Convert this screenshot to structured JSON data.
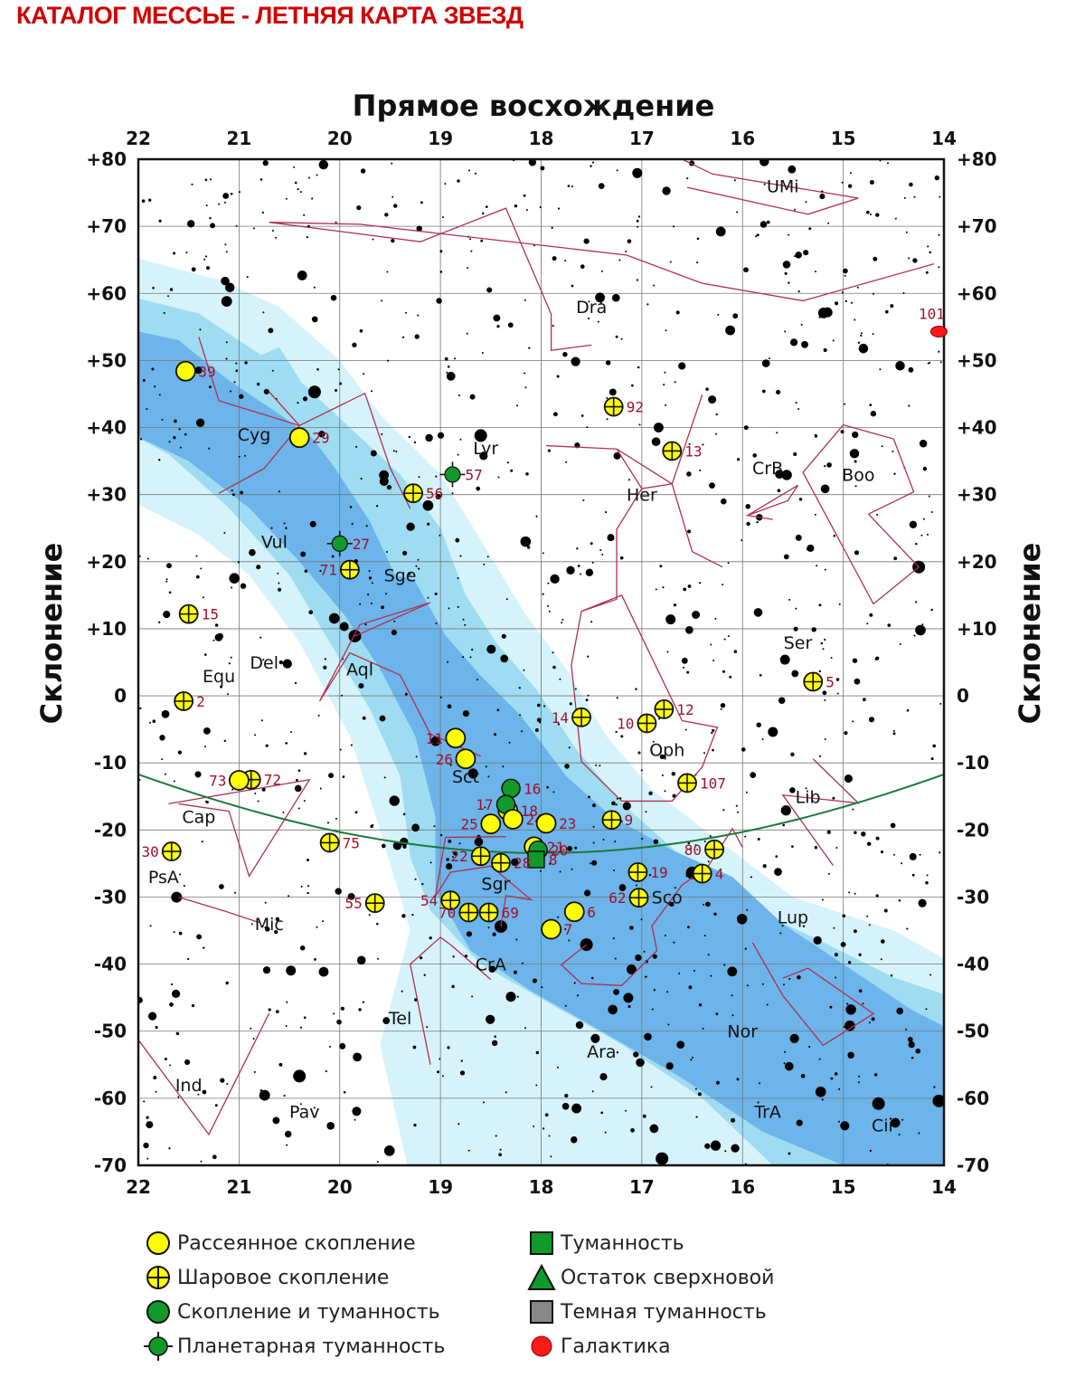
{
  "title": "КАТАЛОГ МЕССЬЕ - ЛЕТНЯЯ КАРТА ЗВЕЗД",
  "axes": {
    "x_title": "Прямое восхождение",
    "y_title": "Склонение",
    "ra_ticks": [
      "22",
      "21",
      "20",
      "19",
      "18",
      "17",
      "16",
      "15",
      "14"
    ],
    "dec_ticks": [
      "+80",
      "+70",
      "+60",
      "+50",
      "+40",
      "+30",
      "+20",
      "+10",
      "0",
      "-10",
      "-20",
      "-30",
      "-40",
      "-50",
      "-60",
      "-70"
    ]
  },
  "colors": {
    "open_cluster": "#ffff00",
    "globular_cluster": "#ffff00",
    "cluster_nebula": "#119a2a",
    "planetary_nebula": "#119a2a",
    "nebula": "#119a2a",
    "galaxy": "#ff1a1a",
    "milky_way_outer": "#d6f3fb",
    "milky_way_mid": "#9fdcf2",
    "milky_way_inner": "#6cb4ea",
    "constellation_lines": "#b03050",
    "ecliptic": "#1a7a3a",
    "number_labels": "#a0102a"
  },
  "constellations": [
    {
      "name": "UMi",
      "ra": 15.6,
      "dec": 76
    },
    {
      "name": "Dra",
      "ra": 17.5,
      "dec": 58
    },
    {
      "name": "Cyg",
      "ra": 20.85,
      "dec": 39
    },
    {
      "name": "Lyr",
      "ra": 18.55,
      "dec": 37
    },
    {
      "name": "CrB",
      "ra": 15.75,
      "dec": 34
    },
    {
      "name": "Boo",
      "ra": 14.85,
      "dec": 33
    },
    {
      "name": "Her",
      "ra": 17.0,
      "dec": 30
    },
    {
      "name": "Vul",
      "ra": 20.65,
      "dec": 23
    },
    {
      "name": "Sge",
      "ra": 19.4,
      "dec": 18
    },
    {
      "name": "Del",
      "ra": 20.75,
      "dec": 5
    },
    {
      "name": "Ser",
      "ra": 15.45,
      "dec": 8
    },
    {
      "name": "Aql",
      "ra": 19.8,
      "dec": 4
    },
    {
      "name": "Equ",
      "ra": 21.2,
      "dec": 3
    },
    {
      "name": "Oph",
      "ra": 16.75,
      "dec": -8
    },
    {
      "name": "Sct",
      "ra": 18.75,
      "dec": -12
    },
    {
      "name": "Lib",
      "ra": 15.35,
      "dec": -15
    },
    {
      "name": "Cap",
      "ra": 21.4,
      "dec": -18
    },
    {
      "name": "Sgr",
      "ra": 18.45,
      "dec": -28
    },
    {
      "name": "PsA",
      "ra": 21.75,
      "dec": -27
    },
    {
      "name": "Sco",
      "ra": 16.75,
      "dec": -30
    },
    {
      "name": "Mic",
      "ra": 20.7,
      "dec": -34
    },
    {
      "name": "Lup",
      "ra": 15.5,
      "dec": -33
    },
    {
      "name": "CrA",
      "ra": 18.5,
      "dec": -40
    },
    {
      "name": "Tel",
      "ra": 19.4,
      "dec": -48
    },
    {
      "name": "Nor",
      "ra": 16.0,
      "dec": -50
    },
    {
      "name": "Ara",
      "ra": 17.4,
      "dec": -53
    },
    {
      "name": "Ind",
      "ra": 21.5,
      "dec": -58
    },
    {
      "name": "Pav",
      "ra": 20.35,
      "dec": -62
    },
    {
      "name": "TrA",
      "ra": 15.75,
      "dec": -62
    },
    {
      "name": "Cir",
      "ra": 14.6,
      "dec": -64
    }
  ],
  "messier_objects": [
    {
      "label": "101",
      "type": "galaxy",
      "ra": 14.05,
      "dec": 54.3
    },
    {
      "label": "39",
      "type": "open",
      "ra": 21.53,
      "dec": 48.4
    },
    {
      "label": "92",
      "type": "globular",
      "ra": 17.28,
      "dec": 43.1
    },
    {
      "label": "29",
      "type": "open",
      "ra": 20.4,
      "dec": 38.5
    },
    {
      "label": "13",
      "type": "globular",
      "ra": 16.7,
      "dec": 36.5
    },
    {
      "label": "57",
      "type": "planetary",
      "ra": 18.88,
      "dec": 33.0
    },
    {
      "label": "56",
      "type": "globular",
      "ra": 19.27,
      "dec": 30.2
    },
    {
      "label": "27",
      "type": "planetary",
      "ra": 20.0,
      "dec": 22.7
    },
    {
      "label": "71",
      "type": "globular",
      "ra": 19.9,
      "dec": 18.8
    },
    {
      "label": "15",
      "type": "globular",
      "ra": 21.5,
      "dec": 12.2
    },
    {
      "label": "5",
      "type": "globular",
      "ra": 15.3,
      "dec": 2.1
    },
    {
      "label": "2",
      "type": "globular",
      "ra": 21.55,
      "dec": -0.8
    },
    {
      "label": "12",
      "type": "globular",
      "ra": 16.78,
      "dec": -2.0
    },
    {
      "label": "14",
      "type": "globular",
      "ra": 17.6,
      "dec": -3.2
    },
    {
      "label": "10",
      "type": "globular",
      "ra": 16.95,
      "dec": -4.1
    },
    {
      "label": "11",
      "type": "open",
      "ra": 18.85,
      "dec": -6.3
    },
    {
      "label": "26",
      "type": "open",
      "ra": 18.75,
      "dec": -9.4
    },
    {
      "label": "72",
      "type": "globular",
      "ra": 20.88,
      "dec": -12.5
    },
    {
      "label": "73",
      "type": "open",
      "ra": 21.0,
      "dec": -12.6
    },
    {
      "label": "107",
      "type": "globular",
      "ra": 16.55,
      "dec": -13.0
    },
    {
      "label": "16",
      "type": "cluster_nebula",
      "ra": 18.3,
      "dec": -13.8
    },
    {
      "label": "18",
      "type": "open",
      "ra": 18.33,
      "dec": -17.1
    },
    {
      "label": "17",
      "type": "cluster_nebula",
      "ra": 18.35,
      "dec": -16.2
    },
    {
      "label": "24",
      "type": "open",
      "ra": 18.28,
      "dec": -18.4
    },
    {
      "label": "9",
      "type": "globular",
      "ra": 17.3,
      "dec": -18.5
    },
    {
      "label": "25",
      "type": "open",
      "ra": 18.5,
      "dec": -19.1
    },
    {
      "label": "23",
      "type": "open",
      "ra": 17.95,
      "dec": -19.0
    },
    {
      "label": "75",
      "type": "globular",
      "ra": 20.1,
      "dec": -21.9
    },
    {
      "label": "21",
      "type": "open",
      "ra": 18.07,
      "dec": -22.5
    },
    {
      "label": "80",
      "type": "globular",
      "ra": 16.28,
      "dec": -22.9
    },
    {
      "label": "20",
      "type": "cluster_nebula",
      "ra": 18.03,
      "dec": -23.0
    },
    {
      "label": "8",
      "type": "nebula",
      "ra": 18.05,
      "dec": -24.4
    },
    {
      "label": "22",
      "type": "globular",
      "ra": 18.6,
      "dec": -23.9
    },
    {
      "label": "28",
      "type": "globular",
      "ra": 18.4,
      "dec": -24.9
    },
    {
      "label": "30",
      "type": "globular",
      "ra": 21.67,
      "dec": -23.2
    },
    {
      "label": "19",
      "type": "globular",
      "ra": 17.04,
      "dec": -26.3
    },
    {
      "label": "4",
      "type": "globular",
      "ra": 16.4,
      "dec": -26.5
    },
    {
      "label": "62",
      "type": "globular",
      "ra": 17.03,
      "dec": -30.1
    },
    {
      "label": "54",
      "type": "globular",
      "ra": 18.9,
      "dec": -30.5
    },
    {
      "label": "55",
      "type": "globular",
      "ra": 19.65,
      "dec": -30.9
    },
    {
      "label": "70",
      "type": "globular",
      "ra": 18.72,
      "dec": -32.3
    },
    {
      "label": "69",
      "type": "globular",
      "ra": 18.52,
      "dec": -32.3
    },
    {
      "label": "6",
      "type": "open",
      "ra": 17.67,
      "dec": -32.2
    },
    {
      "label": "7",
      "type": "open",
      "ra": 17.9,
      "dec": -34.8
    }
  ],
  "legend": [
    {
      "label": "Рассеянное скопление",
      "symbol": "open"
    },
    {
      "label": "Шаровое скопление",
      "symbol": "globular"
    },
    {
      "label": "Скопление и туманность",
      "symbol": "cluster_nebula"
    },
    {
      "label": "Планетарная туманность",
      "symbol": "planetary"
    },
    {
      "label": "Туманность",
      "symbol": "nebula"
    },
    {
      "label": "Остаток сверхновой",
      "symbol": "snr"
    },
    {
      "label": "Темная туманность",
      "symbol": "dark"
    },
    {
      "label": "Галактика",
      "symbol": "galaxy"
    }
  ]
}
